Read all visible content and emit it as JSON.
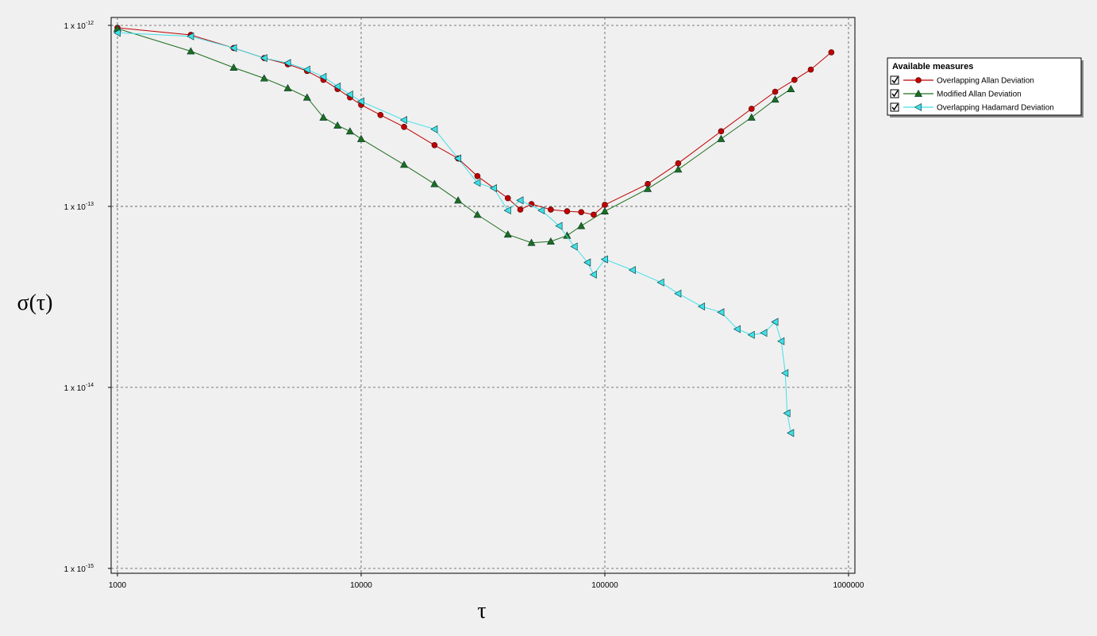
{
  "chart_data": {
    "type": "line",
    "x_label": "τ",
    "y_label": "σ(τ)",
    "xscale": "log",
    "yscale": "log",
    "grid": true,
    "legend_title": "Available measures",
    "legend": "right",
    "xlim": [
      942,
      1062000
    ],
    "ylim": [
      9.4e-16,
      1.106e-12
    ],
    "xticks": [
      1000,
      10000,
      100000,
      1000000
    ],
    "yticks": [
      {
        "value": 1e-12,
        "label": "1 x 10",
        "exponent": "-12"
      },
      {
        "value": 1e-13,
        "label": "1 x 10",
        "exponent": "-13"
      },
      {
        "value": 1e-14,
        "label": "1 x 10",
        "exponent": "-14"
      },
      {
        "value": 1e-15,
        "label": "1 x 10",
        "exponent": "-15"
      }
    ],
    "series": [
      {
        "name": "Overlapping Allan Deviation",
        "color": "#c00000",
        "marker": "circle",
        "x": [
          1000,
          2000,
          3000,
          4000,
          5000,
          6000,
          7000,
          8000,
          9000,
          10000,
          12000,
          15000,
          20000,
          25000,
          30000,
          40000,
          45000,
          50000,
          60000,
          70000,
          80000,
          90000,
          100000,
          150000,
          200000,
          300000,
          400000,
          500000,
          600000,
          700000,
          850000
        ],
        "values": [
          9.7e-13,
          8.86e-13,
          7.5e-13,
          6.6e-13,
          6.1e-13,
          5.6e-13,
          5e-13,
          4.45e-13,
          4e-13,
          3.64e-13,
          3.2e-13,
          2.75e-13,
          2.18e-13,
          1.84e-13,
          1.47e-13,
          1.11e-13,
          9.6e-14,
          1.03e-13,
          9.6e-14,
          9.4e-14,
          9.3e-14,
          9e-14,
          1.02e-13,
          1.33e-13,
          1.73e-13,
          2.6e-13,
          3.46e-13,
          4.3e-13,
          5e-13,
          5.7e-13,
          7.1e-13
        ]
      },
      {
        "name": "Modified Allan Deviation",
        "color": "#1e6e1e",
        "marker": "triangle-up",
        "x": [
          1000,
          2000,
          3000,
          4000,
          5000,
          6000,
          7000,
          8000,
          9000,
          10000,
          15000,
          20000,
          25000,
          30000,
          40000,
          50000,
          60000,
          70000,
          80000,
          100000,
          150000,
          200000,
          300000,
          400000,
          500000,
          580000
        ],
        "values": [
          9.6e-13,
          7.2e-13,
          5.85e-13,
          5.1e-13,
          4.5e-13,
          4e-13,
          3.1e-13,
          2.8e-13,
          2.6e-13,
          2.36e-13,
          1.7e-13,
          1.33e-13,
          1.08e-13,
          9e-14,
          7e-14,
          6.3e-14,
          6.4e-14,
          6.9e-14,
          7.8e-14,
          9.4e-14,
          1.25e-13,
          1.6e-13,
          2.36e-13,
          3.1e-13,
          3.9e-13,
          4.45e-13
        ]
      },
      {
        "name": "Overlapping Hadamard Deviation",
        "color": "#40e0e8",
        "marker": "triangle-left",
        "x": [
          1000,
          2000,
          3000,
          4000,
          5000,
          6000,
          7000,
          8000,
          9000,
          10000,
          15000,
          20000,
          25000,
          30000,
          35000,
          40000,
          45000,
          55000,
          65000,
          75000,
          85000,
          90000,
          100000,
          130000,
          170000,
          200000,
          250000,
          300000,
          350000,
          400000,
          450000,
          500000,
          530000,
          550000,
          560000,
          580000
        ],
        "values": [
          9.1e-13,
          8.7e-13,
          7.5e-13,
          6.6e-13,
          6.2e-13,
          5.7e-13,
          5.2e-13,
          4.6e-13,
          4.15e-13,
          3.8e-13,
          3e-13,
          2.67e-13,
          1.84e-13,
          1.35e-13,
          1.26e-13,
          9.5e-14,
          1.08e-13,
          9.5e-14,
          7.8e-14,
          6e-14,
          4.9e-14,
          4.2e-14,
          5.1e-14,
          4.45e-14,
          3.8e-14,
          3.3e-14,
          2.8e-14,
          2.6e-14,
          2.1e-14,
          1.95e-14,
          2e-14,
          2.3e-14,
          1.8e-14,
          1.2e-14,
          7.2e-15,
          5.6e-15
        ]
      }
    ]
  }
}
